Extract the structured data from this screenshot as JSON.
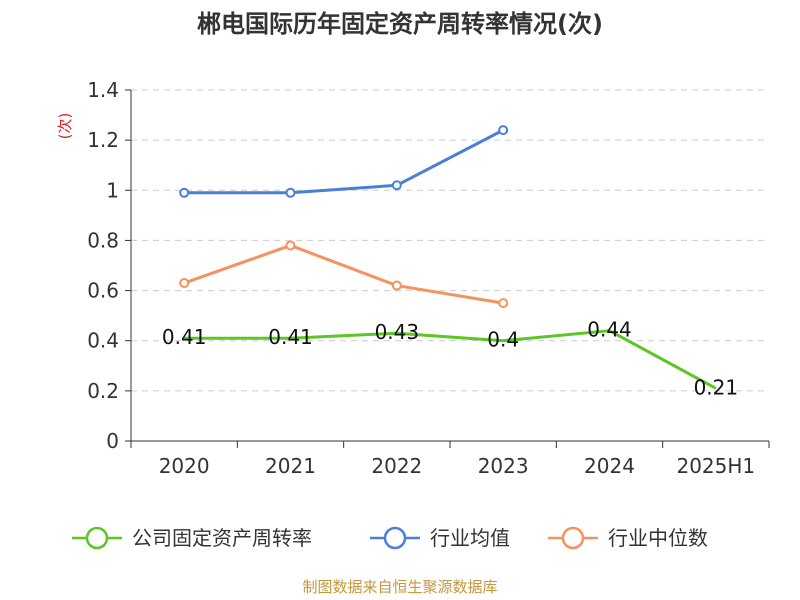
{
  "chart_data": {
    "type": "line",
    "title": "郴电国际历年固定资产周转率情况(次)",
    "ylabel": "(次)",
    "xlabel": "",
    "categories": [
      "2020",
      "2021",
      "2022",
      "2023",
      "2024",
      "2025H1"
    ],
    "ylim": [
      0,
      1.4
    ],
    "yticks": [
      0,
      0.2,
      0.4,
      0.6,
      0.8,
      1,
      1.2,
      1.4
    ],
    "grid": true,
    "legend_position": "bottom",
    "series": [
      {
        "name": "公司固定资产周转率",
        "color": "#5cc623",
        "values": [
          0.41,
          0.41,
          0.43,
          0.4,
          0.44,
          0.21
        ],
        "labels": [
          "0.41",
          "0.41",
          "0.43",
          "0.4",
          "0.44",
          "0.21"
        ]
      },
      {
        "name": "行业均值",
        "color": "#4a7fd8",
        "values": [
          0.99,
          0.99,
          1.02,
          1.24,
          null,
          null
        ]
      },
      {
        "name": "行业中位数",
        "color": "#f5925e",
        "values": [
          0.63,
          0.78,
          0.62,
          0.55,
          null,
          null
        ]
      }
    ]
  },
  "source": "制图数据来自恒生聚源数据库"
}
